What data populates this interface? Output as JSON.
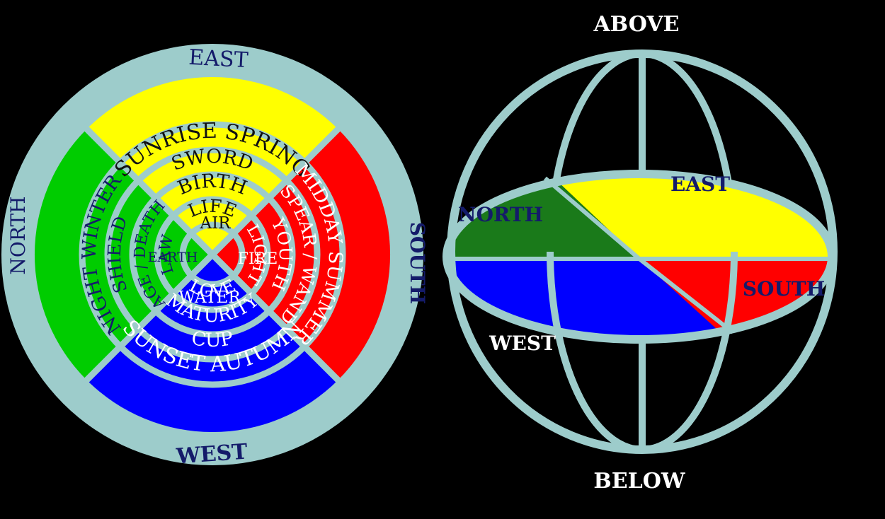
{
  "colors": {
    "background": "#000000",
    "ring": "#9dcccb",
    "east": "#ffff00",
    "south": "#ff0000",
    "west": "#0000ff",
    "north": "#00cc00",
    "north_dark": "#1a7a1a",
    "label_dark": "#141b6a",
    "label_light": "#ffffff",
    "label_black": "#111111"
  },
  "wheel": {
    "directions": {
      "east": "EAST",
      "south": "SOUTH",
      "west": "WEST",
      "north": "NORTH"
    },
    "east": {
      "outer": "SUNRISE   SPRING",
      "tool": "SWORD",
      "stage": "BIRTH",
      "aspect": "LIFE",
      "element": "AIR"
    },
    "south": {
      "outer": "MIDDAY  SUMMER",
      "tool": "SPEAR / WAND",
      "stage": "YOUTH",
      "aspect": "LIGHT",
      "element": "FIRE"
    },
    "west": {
      "outer": "SUNSET   AUTUMN",
      "tool": "CUP",
      "stage": "MATURITY",
      "aspect": "LOVE",
      "element": "WATER"
    },
    "north": {
      "outer": "NIGHT  WINTER",
      "tool": "SHIELD",
      "stage": "AGE / DEATH",
      "aspect": "LAW",
      "element": "EARTH"
    }
  },
  "sphere": {
    "above": "ABOVE",
    "below": "BELOW",
    "north": "NORTH",
    "east": "EAST",
    "south": "SOUTH",
    "west": "WEST"
  }
}
